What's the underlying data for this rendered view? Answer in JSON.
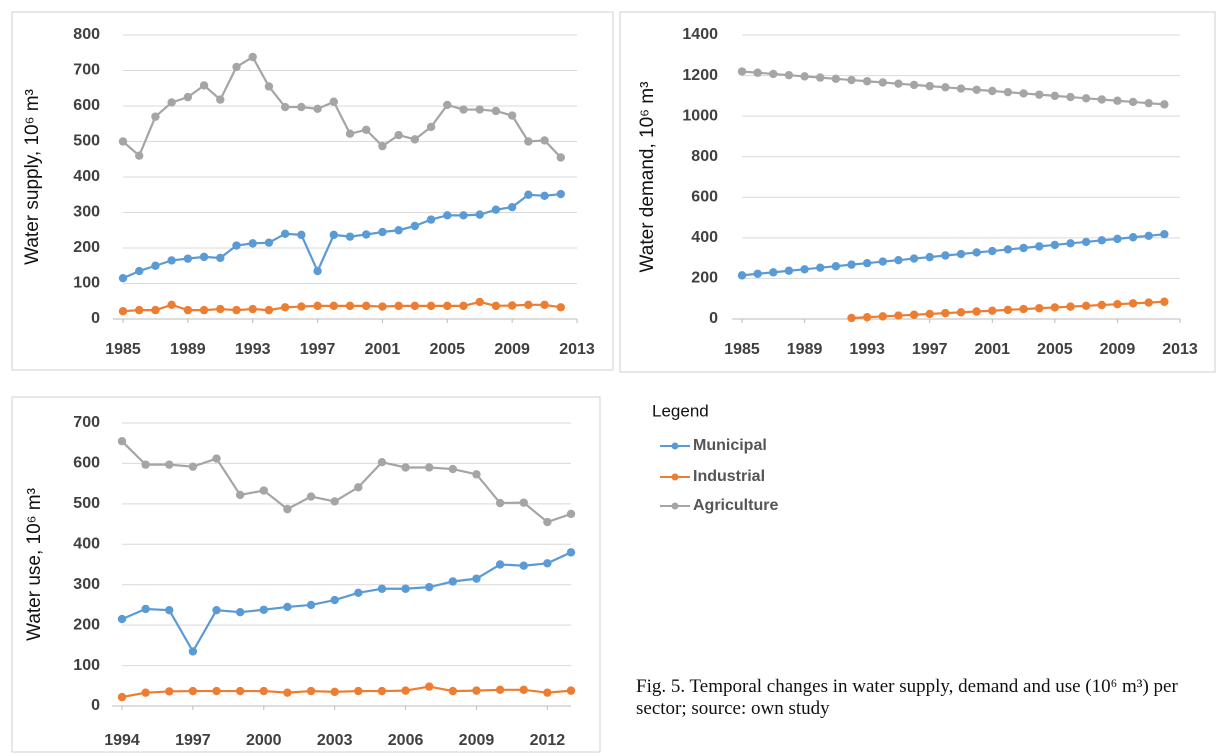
{
  "chart_data": [
    {
      "type": "line",
      "y_label": "Water supply, 10⁶ m³",
      "x": [
        1985,
        1986,
        1987,
        1988,
        1989,
        1990,
        1991,
        1992,
        1993,
        1994,
        1995,
        1996,
        1997,
        1998,
        1999,
        2000,
        2001,
        2002,
        2003,
        2004,
        2005,
        2006,
        2007,
        2008,
        2009,
        2010,
        2011,
        2012
      ],
      "xlim": [
        1985,
        2013
      ],
      "xticks": [
        1985,
        1989,
        1993,
        1997,
        2001,
        2005,
        2009,
        2013
      ],
      "ylim": [
        0,
        800
      ],
      "yticks": [
        0,
        100,
        200,
        300,
        400,
        500,
        600,
        700,
        800
      ],
      "grid": true,
      "series": [
        {
          "name": "Municipal",
          "color": "#5b9bd5",
          "values": [
            115,
            135,
            150,
            165,
            170,
            175,
            172,
            207,
            213,
            215,
            240,
            237,
            135,
            237,
            232,
            238,
            245,
            250,
            262,
            280,
            292,
            292,
            294,
            308,
            315,
            350,
            347,
            352
          ]
        },
        {
          "name": "Industrial",
          "color": "#ed7d31",
          "values": [
            22,
            25,
            25,
            40,
            25,
            25,
            28,
            25,
            28,
            25,
            33,
            35,
            37,
            37,
            37,
            37,
            35,
            37,
            37,
            37,
            37,
            37,
            48,
            37,
            38,
            40,
            40,
            33
          ]
        },
        {
          "name": "Agriculture",
          "color": "#a5a5a5",
          "values": [
            500,
            460,
            570,
            610,
            625,
            658,
            618,
            710,
            738,
            655,
            597,
            597,
            592,
            612,
            522,
            533,
            487,
            518,
            506,
            541,
            603,
            590,
            590,
            586,
            573,
            500,
            503,
            455
          ]
        }
      ]
    },
    {
      "type": "line",
      "y_label": "Water demand, 10⁶ m³",
      "x": [
        1985,
        1986,
        1987,
        1988,
        1989,
        1990,
        1991,
        1992,
        1993,
        1994,
        1995,
        1996,
        1997,
        1998,
        1999,
        2000,
        2001,
        2002,
        2003,
        2004,
        2005,
        2006,
        2007,
        2008,
        2009,
        2010,
        2011,
        2012
      ],
      "xlim": [
        1985,
        2013
      ],
      "xticks": [
        1985,
        1989,
        1993,
        1997,
        2001,
        2005,
        2009,
        2013
      ],
      "ylim": [
        0,
        1400
      ],
      "yticks": [
        0,
        200,
        400,
        600,
        800,
        1000,
        1200,
        1400
      ],
      "grid": true,
      "series": [
        {
          "color": "#5b9bd5",
          "values": [
            215,
            223,
            230,
            238,
            245,
            253,
            260,
            268,
            275,
            283,
            290,
            298,
            305,
            313,
            320,
            328,
            335,
            343,
            350,
            358,
            365,
            373,
            380,
            388,
            395,
            403,
            410,
            418
          ]
        },
        {
          "color": "#ed7d31",
          "values": [
            null,
            null,
            null,
            null,
            null,
            null,
            null,
            5,
            9,
            13,
            17,
            21,
            25,
            29,
            33,
            37,
            41,
            45,
            49,
            53,
            57,
            61,
            65,
            69,
            73,
            77,
            81,
            85
          ]
        },
        {
          "color": "#a5a5a5",
          "values": [
            1220,
            1214,
            1208,
            1202,
            1196,
            1190,
            1184,
            1178,
            1172,
            1166,
            1160,
            1154,
            1148,
            1142,
            1136,
            1130,
            1124,
            1118,
            1112,
            1106,
            1100,
            1094,
            1088,
            1082,
            1076,
            1070,
            1064,
            1058
          ]
        }
      ]
    },
    {
      "type": "line",
      "y_label": "Water use, 10⁶ m³",
      "x": [
        1994,
        1995,
        1996,
        1997,
        1998,
        1999,
        2000,
        2001,
        2002,
        2003,
        2004,
        2005,
        2006,
        2007,
        2008,
        2009,
        2010,
        2011,
        2012,
        2013
      ],
      "xlim": [
        1994,
        2013
      ],
      "xticks": [
        1994,
        1997,
        2000,
        2003,
        2006,
        2009,
        2012
      ],
      "ylim": [
        0,
        700
      ],
      "yticks": [
        0,
        100,
        200,
        300,
        400,
        500,
        600,
        700
      ],
      "grid": true,
      "series": [
        {
          "color": "#5b9bd5",
          "values": [
            215,
            240,
            237,
            135,
            237,
            232,
            238,
            245,
            250,
            262,
            280,
            290,
            290,
            294,
            308,
            315,
            350,
            347,
            353,
            380
          ]
        },
        {
          "color": "#ed7d31",
          "values": [
            22,
            33,
            36,
            37,
            37,
            37,
            37,
            33,
            37,
            35,
            37,
            37,
            38,
            48,
            37,
            38,
            40,
            40,
            33,
            38
          ]
        },
        {
          "color": "#a5a5a5",
          "values": [
            655,
            597,
            597,
            592,
            612,
            522,
            533,
            487,
            518,
            506,
            541,
            603,
            590,
            590,
            586,
            573,
            502,
            503,
            455,
            475
          ]
        }
      ]
    }
  ],
  "legend_title": "Legend",
  "caption": "Fig. 5. Temporal changes in water supply, demand and use (10⁶ m³) per sector; source: own study"
}
